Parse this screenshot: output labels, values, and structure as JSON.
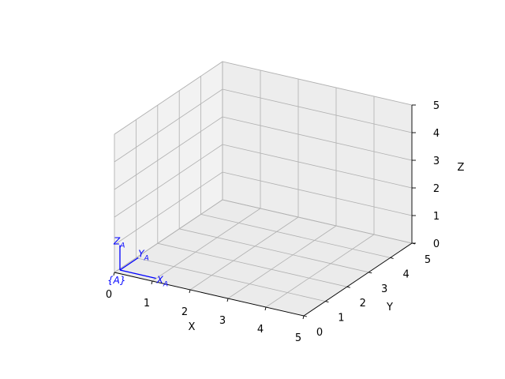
{
  "chart_data": {
    "type": "3d-axes",
    "xlabel": "X",
    "ylabel": "Y",
    "zlabel": "Z",
    "xlim": [
      0,
      5
    ],
    "ylim": [
      0,
      5
    ],
    "zlim": [
      0,
      5
    ],
    "xticks": [
      "0",
      "1",
      "2",
      "3",
      "4",
      "5"
    ],
    "yticks": [
      "0",
      "1",
      "2",
      "3",
      "4",
      "5"
    ],
    "zticks": [
      "0",
      "1",
      "2",
      "3",
      "4",
      "5"
    ],
    "grid": true,
    "frame": {
      "label": "{A}",
      "origin": [
        0,
        0,
        0
      ],
      "length": 1,
      "color": "#0000ff",
      "axis_labels": {
        "x": "X",
        "y": "Y",
        "z": "Z",
        "subscript": "A"
      }
    },
    "colors": {
      "pane_floor": "#ebebeb",
      "pane_left": "#f2f2f2",
      "pane_back": "#ededed",
      "grid": "#b0b0b0"
    }
  }
}
